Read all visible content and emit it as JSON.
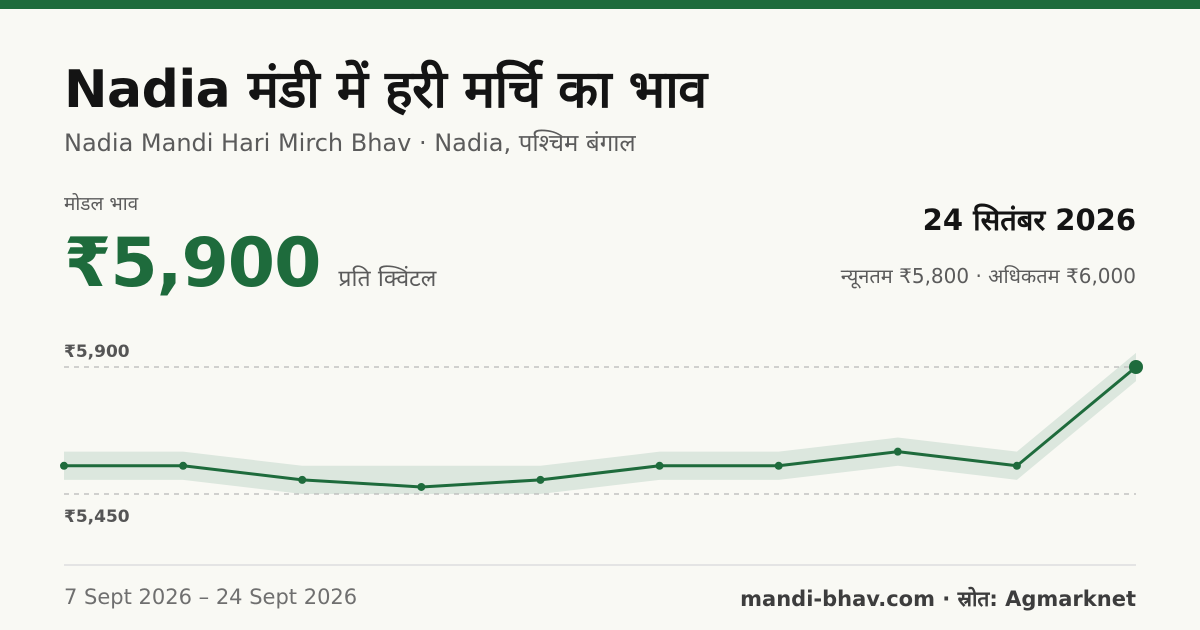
{
  "title": "Nadia मंडी में हरी मर्चि का भाव",
  "subtitle": "Nadia Mandi Hari Mirch Bhav · Nadia, पश्चिम बंगाल",
  "model_label": "मोडल भाव",
  "model_price": "₹5,900",
  "unit": "प्रति क्विंटल",
  "date": "24 सितंबर 2026",
  "minmax": "न्यूनतम ₹5,800 · अधिकतम ₹6,000",
  "footer": {
    "range": "7 Sept 2026 – 24 Sept 2026",
    "source": "mandi-bhav.com · स्रोत: Agmarknet"
  },
  "colors": {
    "accent": "#1e6b3c",
    "band": "#dce7de",
    "gridline": "#b8b8b8",
    "background": "#f9f9f4"
  },
  "chart_data": {
    "type": "line",
    "series": [
      {
        "values": [
          5550,
          5550,
          5500,
          5475,
          5500,
          5550,
          5550,
          5600,
          5550,
          5900
        ]
      }
    ],
    "band": {
      "lower": [
        5500,
        5500,
        5450,
        5450,
        5450,
        5500,
        5500,
        5550,
        5500,
        5850
      ],
      "upper": [
        5600,
        5600,
        5550,
        5550,
        5550,
        5600,
        5600,
        5650,
        5600,
        5950
      ]
    },
    "reference_lines": [
      {
        "value": 5900,
        "label": "₹5,900"
      },
      {
        "value": 5450,
        "label": "₹5,450"
      }
    ],
    "ylim": [
      5450,
      5900
    ],
    "grid": false
  }
}
